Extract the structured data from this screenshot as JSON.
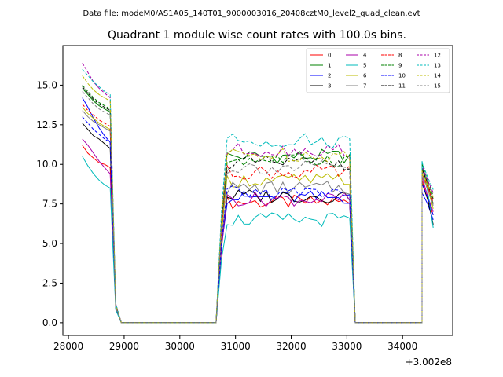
{
  "figure": {
    "suptitle": "Data file: modeM0/AS1A05_140T01_9000003016_20408cztM0_level2_quad_clean.evt"
  },
  "chart_data": {
    "type": "line",
    "title": "Quadrant 1 module wise count rates with 100.0s bins.",
    "xlabel": "",
    "ylabel": "",
    "x_offset_label": "+3.002e8",
    "x_offset": 300200000,
    "xlim": [
      300227900,
      300234900
    ],
    "ylim": [
      -0.8,
      17.5
    ],
    "x_ticks": [
      300228000,
      300229000,
      300230000,
      300231000,
      300232000,
      300233000,
      300234000
    ],
    "x_tick_labels": [
      "28000",
      "29000",
      "30000",
      "31000",
      "32000",
      "33000",
      "34000"
    ],
    "y_ticks": [
      0.0,
      2.5,
      5.0,
      7.5,
      10.0,
      12.5,
      15.0
    ],
    "y_tick_labels": [
      "0.0",
      "2.5",
      "5.0",
      "7.5",
      "10.0",
      "12.5",
      "15.0"
    ],
    "grid": false,
    "legend": {
      "placement": "top-right",
      "columns": 4
    },
    "segments": [
      {
        "start": 300228250,
        "count": 6,
        "step": 100
      },
      {
        "start": 300228850,
        "count": 19,
        "step": 100
      },
      {
        "start": 300230750,
        "count": 24,
        "step": 100
      },
      {
        "start": 300233150,
        "count": 13,
        "step": 100
      },
      {
        "start": 300234350,
        "count": 3,
        "step": 100
      }
    ],
    "series": [
      {
        "name": "0",
        "color": "#ff0000",
        "dash": "solid",
        "level_a": [
          11.2,
          10.7,
          10.4,
          10.1,
          10.0,
          9.8
        ],
        "level_b": 7.6,
        "edge": 1.0,
        "level_c": [
          9.0,
          7.8,
          6.8
        ]
      },
      {
        "name": "1",
        "color": "#008000",
        "dash": "solid",
        "level_a": [
          14.8,
          14.4,
          14.0,
          13.7,
          13.5,
          13.3
        ],
        "level_b": 10.5,
        "edge": 0.9,
        "level_c": [
          9.8,
          8.8,
          7.5
        ]
      },
      {
        "name": "2",
        "color": "#0000ff",
        "dash": "solid",
        "level_a": [
          14.2,
          13.6,
          12.9,
          12.3,
          11.8,
          11.4
        ],
        "level_b": 7.9,
        "edge": 0.9,
        "level_c": [
          8.2,
          7.5,
          6.5
        ]
      },
      {
        "name": "3",
        "color": "#000000",
        "dash": "solid",
        "level_a": [
          12.6,
          12.2,
          11.8,
          11.6,
          11.3,
          11.0
        ],
        "level_b": 8.0,
        "edge": 1.0,
        "level_c": [
          8.8,
          7.8,
          6.2
        ]
      },
      {
        "name": "4",
        "color": "#aa00aa",
        "dash": "solid",
        "level_a": [
          11.6,
          11.2,
          10.7,
          10.2,
          9.8,
          9.4
        ],
        "level_b": 7.8,
        "edge": 0.9,
        "level_c": [
          9.2,
          8.0,
          7.0
        ]
      },
      {
        "name": "5",
        "color": "#00bbbb",
        "dash": "solid",
        "level_a": [
          10.5,
          9.9,
          9.4,
          9.0,
          8.7,
          8.5
        ],
        "level_b": 6.5,
        "edge": 0.8,
        "level_c": [
          10.2,
          8.3,
          6.0
        ]
      },
      {
        "name": "6",
        "color": "#bbbb00",
        "dash": "solid",
        "level_a": [
          13.6,
          13.2,
          12.9,
          12.6,
          12.4,
          12.2
        ],
        "level_b": 9.0,
        "edge": 1.0,
        "level_c": [
          9.4,
          8.5,
          7.2
        ]
      },
      {
        "name": "7",
        "color": "#808080",
        "dash": "solid",
        "level_a": [
          13.4,
          13.0,
          12.7,
          12.5,
          12.3,
          12.1
        ],
        "level_b": 8.5,
        "edge": 1.0,
        "level_c": [
          9.6,
          8.7,
          7.4
        ]
      },
      {
        "name": "8",
        "color": "#ff0000",
        "dash": "dashed",
        "level_a": [
          13.8,
          13.4,
          13.1,
          12.8,
          12.6,
          12.4
        ],
        "level_b": 9.5,
        "edge": 1.1,
        "level_c": [
          9.5,
          8.6,
          7.6
        ]
      },
      {
        "name": "9",
        "color": "#008000",
        "dash": "dashed",
        "level_a": [
          15.0,
          14.6,
          14.2,
          13.9,
          13.7,
          13.5
        ],
        "level_b": 10.3,
        "edge": 1.1,
        "level_c": [
          10.0,
          9.0,
          8.0
        ]
      },
      {
        "name": "10",
        "color": "#0000ff",
        "dash": "dashed",
        "level_a": [
          13.0,
          12.6,
          12.2,
          11.9,
          11.6,
          11.4
        ],
        "level_b": 8.2,
        "edge": 1.0,
        "level_c": [
          8.8,
          7.9,
          6.8
        ]
      },
      {
        "name": "11",
        "color": "#000000",
        "dash": "dashed",
        "level_a": [
          14.9,
          14.5,
          14.1,
          13.8,
          13.6,
          13.4
        ],
        "level_b": 10.1,
        "edge": 1.1,
        "level_c": [
          9.7,
          8.8,
          7.8
        ]
      },
      {
        "name": "12",
        "color": "#aa00aa",
        "dash": "dashed",
        "level_a": [
          16.4,
          15.8,
          15.2,
          14.8,
          14.5,
          14.2
        ],
        "level_b": 10.9,
        "edge": 1.2,
        "level_c": [
          9.9,
          9.0,
          8.2
        ]
      },
      {
        "name": "13",
        "color": "#00bbbb",
        "dash": "dashed",
        "level_a": [
          16.0,
          15.6,
          15.2,
          14.9,
          14.6,
          14.4
        ],
        "level_b": 11.5,
        "edge": 1.2,
        "level_c": [
          10.1,
          9.2,
          8.4
        ]
      },
      {
        "name": "14",
        "color": "#bbbb00",
        "dash": "dashed",
        "level_a": [
          15.6,
          15.1,
          14.7,
          14.4,
          14.2,
          14.0
        ],
        "level_b": 10.6,
        "edge": 1.1,
        "level_c": [
          9.6,
          8.7,
          7.9
        ]
      },
      {
        "name": "15",
        "color": "#808080",
        "dash": "dashed",
        "level_a": [
          14.6,
          14.2,
          13.8,
          13.5,
          13.3,
          13.1
        ],
        "level_b": 9.8,
        "edge": 1.0,
        "level_c": [
          9.3,
          8.4,
          7.5
        ]
      }
    ]
  }
}
